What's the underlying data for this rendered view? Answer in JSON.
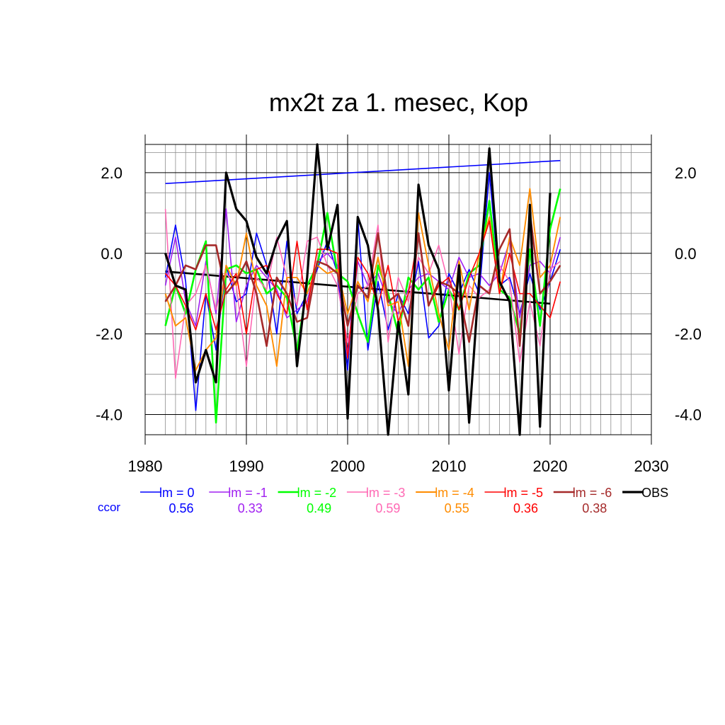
{
  "chart_data": {
    "type": "line",
    "title": "mx2t za 1. mesec, Kop",
    "xlabel": "",
    "ylabel": "",
    "xlim": [
      1980,
      2030
    ],
    "ylim": [
      -4.5,
      2.7
    ],
    "x_ticks": [
      1980,
      1990,
      2000,
      2010,
      2020,
      2030
    ],
    "x_tick_labels": [
      "1980",
      "1990",
      "2000",
      "2010",
      "2020",
      "2030"
    ],
    "y_ticks": [
      2.0,
      0.0,
      -2.0,
      -4.0
    ],
    "y_tick_labels": [
      "2.0",
      "0.0",
      "-2.0",
      "-4.0"
    ],
    "grid": true,
    "legend_position": "bottom",
    "ccor_label": "ccor",
    "ccor_color": "#0000ff",
    "x": [
      1982,
      1983,
      1984,
      1985,
      1986,
      1987,
      1988,
      1989,
      1990,
      1991,
      1992,
      1993,
      1994,
      1995,
      1996,
      1997,
      1998,
      1999,
      2000,
      2001,
      2002,
      2003,
      2004,
      2005,
      2006,
      2007,
      2008,
      2009,
      2010,
      2011,
      2012,
      2013,
      2014,
      2015,
      2016,
      2017,
      2018,
      2019,
      2020,
      2021
    ],
    "series": [
      {
        "name": "lm = 0",
        "ccor": "0.56",
        "color": "#0000ff",
        "width": 1.6,
        "values": [
          -0.6,
          0.7,
          -0.7,
          -3.9,
          -1.0,
          -2.4,
          -0.3,
          -1.2,
          -1.0,
          0.5,
          -0.3,
          -2.0,
          0.3,
          -1.5,
          -1.0,
          -0.4,
          0.3,
          -0.5,
          -2.9,
          0.9,
          -2.4,
          -0.7,
          -1.9,
          -1.0,
          -1.5,
          -0.2,
          -2.1,
          -1.8,
          -0.5,
          -1.0,
          -0.4,
          -1.0,
          2.0,
          -0.8,
          -0.6,
          -1.5,
          -0.5,
          -1.4,
          -0.7,
          0.1
        ]
      },
      {
        "name": "lm = -1",
        "ccor": "0.33",
        "color": "#a020f0",
        "width": 1.6,
        "values": [
          -0.8,
          0.4,
          -1.2,
          -1.8,
          -0.2,
          -1.5,
          1.1,
          -1.7,
          -0.8,
          -0.3,
          -0.6,
          -0.9,
          -1.6,
          -1.4,
          -1.2,
          -0.2,
          0.0,
          -0.3,
          -2.5,
          -0.2,
          -0.8,
          -0.5,
          -1.2,
          -1.5,
          -0.9,
          -0.6,
          -0.5,
          -0.7,
          -0.9,
          -0.1,
          -0.6,
          -0.5,
          -0.8,
          -0.5,
          0.3,
          -1.6,
          -0.3,
          -0.2,
          -0.5,
          0.4
        ]
      },
      {
        "name": "lm = -2",
        "ccor": "0.49",
        "color": "#00ff00",
        "width": 2.6,
        "values": [
          -1.8,
          -0.8,
          -1.5,
          -0.4,
          0.3,
          -4.2,
          -0.4,
          -0.3,
          -0.5,
          -0.4,
          -1.0,
          -0.8,
          -1.1,
          -2.4,
          -0.8,
          -0.3,
          1.0,
          -0.5,
          -0.7,
          -1.5,
          -2.2,
          -0.3,
          -1.0,
          -2.0,
          -0.6,
          -0.9,
          -0.6,
          -1.7,
          -0.9,
          -1.4,
          -0.5,
          -0.3,
          1.3,
          -0.9,
          -1.1,
          -2.0,
          0.1,
          -1.8,
          0.6,
          1.6
        ]
      },
      {
        "name": "lm = -3",
        "ccor": "0.59",
        "color": "#ff69b4",
        "width": 1.6,
        "values": [
          1.1,
          -3.1,
          -1.3,
          -1.0,
          -0.3,
          -1.4,
          -0.5,
          -0.8,
          -2.8,
          -0.6,
          -0.9,
          0.4,
          -0.6,
          -1.3,
          0.3,
          0.4,
          -0.3,
          -0.8,
          -2.2,
          -1.0,
          -0.8,
          0.7,
          -2.2,
          -0.6,
          -1.2,
          -0.1,
          -0.5,
          0.2,
          -0.8,
          -2.5,
          -0.8,
          -1.1,
          -0.9,
          -0.3,
          -0.7,
          -2.7,
          -1.2,
          -2.3,
          -0.4,
          -0.2
        ]
      },
      {
        "name": "lm = -4",
        "ccor": "0.55",
        "color": "#ff8c00",
        "width": 1.9,
        "values": [
          -1.0,
          -1.8,
          -1.6,
          -2.9,
          -2.4,
          -2.1,
          -0.3,
          -0.8,
          0.5,
          -0.8,
          -1.3,
          -2.8,
          -0.6,
          -0.6,
          -1.0,
          -0.3,
          -0.5,
          -0.4,
          -1.5,
          -0.7,
          -1.2,
          -0.1,
          -1.3,
          -1.2,
          -2.8,
          1.0,
          -0.3,
          -1.5,
          -2.4,
          -0.2,
          -1.4,
          0.0,
          0.9,
          -1.0,
          0.4,
          -0.3,
          1.6,
          -0.6,
          -0.3,
          0.9
        ]
      },
      {
        "name": "lm = -5",
        "ccor": "0.36",
        "color": "#ff0000",
        "width": 1.6,
        "values": [
          -0.5,
          -0.8,
          -1.3,
          -1.9,
          -1.0,
          -1.9,
          -0.9,
          -0.5,
          -2.0,
          -0.4,
          -0.3,
          -1.0,
          -1.5,
          0.3,
          -1.4,
          0.1,
          0.1,
          0.0,
          -2.6,
          -0.1,
          -0.5,
          -1.3,
          -0.3,
          -1.7,
          -1.0,
          0.5,
          -1.3,
          -0.8,
          -0.6,
          -1.4,
          -0.6,
          0.0,
          0.8,
          -1.0,
          0.0,
          -1.0,
          -1.0,
          -1.3,
          -1.6,
          -0.7
        ]
      },
      {
        "name": "lm = -6",
        "ccor": "0.38",
        "color": "#a52a2a",
        "width": 2.6,
        "values": [
          -1.2,
          -0.8,
          -0.3,
          -0.4,
          0.2,
          0.2,
          -1.0,
          -0.7,
          -0.2,
          -1.0,
          -2.3,
          -0.6,
          -1.0,
          -1.7,
          -1.6,
          -0.2,
          -0.3,
          -0.5,
          -1.8,
          -0.8,
          -1.1,
          0.5,
          -1.2,
          -1.0,
          -1.8,
          0.5,
          -1.3,
          -0.7,
          -0.8,
          -1.0,
          -2.2,
          -0.8,
          -1.0,
          0.1,
          0.6,
          -2.3,
          1.0,
          -1.0,
          -0.7,
          -0.3
        ]
      },
      {
        "name": "OBS",
        "ccor": "",
        "color": "#000000",
        "width": 3.2,
        "values": [
          0.0,
          -0.8,
          -0.9,
          -3.2,
          -2.4,
          -3.2,
          2.0,
          1.1,
          0.8,
          -0.1,
          -0.5,
          0.3,
          0.8,
          -2.8,
          -0.6,
          2.7,
          0.1,
          1.2,
          -4.1,
          0.9,
          0.2,
          -1.4,
          -4.5,
          -1.7,
          -3.5,
          1.7,
          0.2,
          -0.4,
          -3.4,
          -0.3,
          -4.2,
          -0.6,
          2.6,
          -0.7,
          -1.2,
          -4.5,
          1.2,
          -4.3,
          1.5,
          null
        ]
      }
    ],
    "trend_lines": [
      {
        "name": "lm = 0 trend",
        "color": "#0000ff",
        "width": 1.6,
        "x": [
          1982,
          2021
        ],
        "y": [
          1.73,
          2.3
        ]
      },
      {
        "name": "OBS trend",
        "color": "#000000",
        "width": 2.6,
        "x": [
          1982,
          2020
        ],
        "y": [
          -0.45,
          -1.25
        ]
      }
    ]
  }
}
